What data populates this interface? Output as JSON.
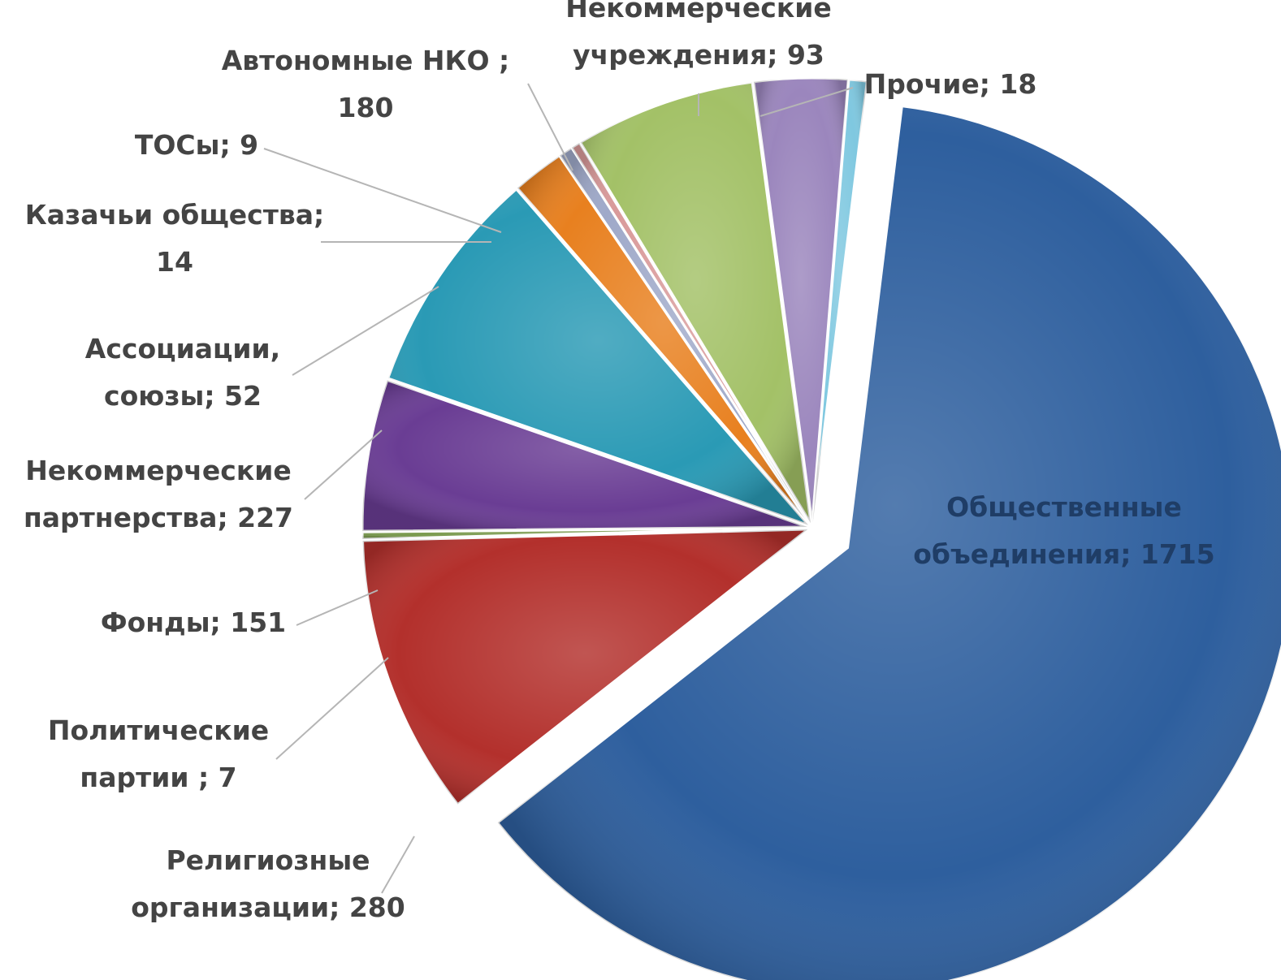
{
  "chart_data": {
    "type": "pie",
    "title": "",
    "slices": [
      {
        "label": "Общественные объединения",
        "value": 1715,
        "color": "#2e5f9e",
        "lines": [
          "Общественные",
          "объединения; 1715"
        ]
      },
      {
        "label": "Религиозные организации",
        "value": 280,
        "color": "#b3302c",
        "lines": [
          "Религиозные",
          "организации; 280"
        ]
      },
      {
        "label": "Политические партии",
        "value": 7,
        "color": "#7a9a4e",
        "lines": [
          "Политические",
          "партии ; 7"
        ]
      },
      {
        "label": "Фонды",
        "value": 151,
        "color": "#6a3d94",
        "lines": [
          "Фонды; 151"
        ]
      },
      {
        "label": "Некоммерческие партнерства",
        "value": 227,
        "color": "#2a9ab5",
        "lines": [
          "Некоммерческие",
          "партнерства; 227"
        ]
      },
      {
        "label": "Ассоциации, союзы",
        "value": 52,
        "color": "#e8801f",
        "lines": [
          "Ассоциации,",
          "союзы; 52"
        ]
      },
      {
        "label": "Казачьи общества",
        "value": 14,
        "color": "#9fa9c9",
        "lines": [
          "Казачьи общества;",
          "14"
        ]
      },
      {
        "label": "ТОСы",
        "value": 9,
        "color": "#d99a9a",
        "lines": [
          "ТОСы; 9"
        ]
      },
      {
        "label": "Автономные НКО",
        "value": 180,
        "color": "#a3c167",
        "lines": [
          "Автономные НКО ;",
          "180"
        ]
      },
      {
        "label": "Некоммерческие учреждения",
        "value": 93,
        "color": "#9b86bd",
        "lines": [
          "Некоммерческие",
          "учреждения; 93"
        ]
      },
      {
        "label": "Прочие",
        "value": 18,
        "color": "#7fc8e0",
        "lines": [
          "Прочие; 18"
        ]
      }
    ]
  }
}
